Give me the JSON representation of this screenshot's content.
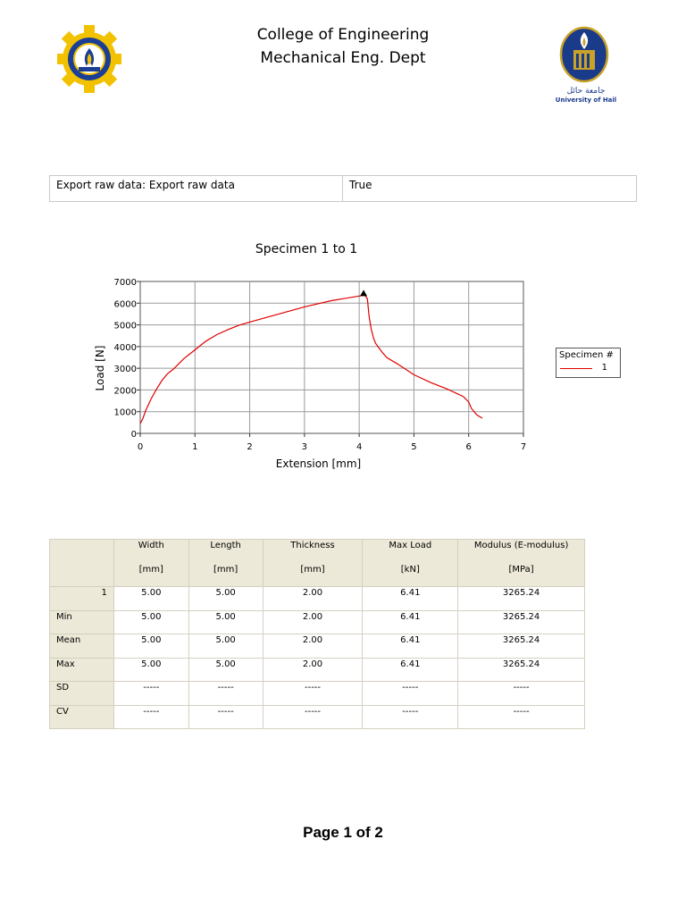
{
  "header": {
    "line1": "College of Engineering",
    "line2": "Mechanical Eng. Dept",
    "right_logo_text_ar": "جامعة حائل",
    "right_logo_text_en": "University of Hail"
  },
  "info_row": {
    "label": "Export raw data: Export raw data",
    "value": "True"
  },
  "chart_title": "Specimen 1 to 1",
  "chart_data": {
    "type": "line",
    "xlabel": "Extension [mm]",
    "ylabel": "Load [N]",
    "xlim": [
      0,
      7
    ],
    "ylim": [
      0,
      7000
    ],
    "xticks": [
      "0",
      "1",
      "2",
      "3",
      "4",
      "5",
      "6",
      "7"
    ],
    "yticks": [
      "0",
      "1000",
      "2000",
      "3000",
      "4000",
      "5000",
      "6000",
      "7000"
    ],
    "grid": true,
    "legend_title": "Specimen #",
    "legend_placement": "right",
    "series": [
      {
        "name": "1",
        "color": "#e00000",
        "x": [
          0,
          0.05,
          0.1,
          0.2,
          0.3,
          0.4,
          0.5,
          0.6,
          0.7,
          0.8,
          0.9,
          1.0,
          1.2,
          1.4,
          1.6,
          1.8,
          2.0,
          2.5,
          3.0,
          3.5,
          4.0,
          4.1,
          4.15,
          4.18,
          4.22,
          4.26,
          4.3,
          4.4,
          4.5,
          4.7,
          5.0,
          5.3,
          5.6,
          5.9,
          6.0,
          6.05,
          6.15,
          6.25
        ],
        "y": [
          450,
          700,
          1050,
          1600,
          2050,
          2450,
          2750,
          2950,
          3200,
          3450,
          3650,
          3850,
          4250,
          4550,
          4780,
          4980,
          5130,
          5480,
          5830,
          6120,
          6330,
          6380,
          6200,
          5400,
          4800,
          4400,
          4150,
          3800,
          3500,
          3200,
          2700,
          2350,
          2050,
          1700,
          1450,
          1150,
          850,
          700
        ]
      }
    ],
    "peak_marker": {
      "x": 4.08,
      "y": 6410
    }
  },
  "results": {
    "headers": [
      {
        "name": "",
        "unit": ""
      },
      {
        "name": "Width",
        "unit": "[mm]"
      },
      {
        "name": "Length",
        "unit": "[mm]"
      },
      {
        "name": "Thickness",
        "unit": "[mm]"
      },
      {
        "name": "Max Load",
        "unit": "[kN]"
      },
      {
        "name": "Modulus (E-modulus)",
        "unit": "[MPa]"
      }
    ],
    "rows": [
      {
        "label": "1",
        "values": [
          "5.00",
          "5.00",
          "2.00",
          "6.41",
          "3265.24"
        ]
      },
      {
        "label": "Min",
        "values": [
          "5.00",
          "5.00",
          "2.00",
          "6.41",
          "3265.24"
        ]
      },
      {
        "label": "Mean",
        "values": [
          "5.00",
          "5.00",
          "2.00",
          "6.41",
          "3265.24"
        ]
      },
      {
        "label": "Max",
        "values": [
          "5.00",
          "5.00",
          "2.00",
          "6.41",
          "3265.24"
        ]
      },
      {
        "label": "SD",
        "values": [
          "-----",
          "-----",
          "-----",
          "-----",
          "-----"
        ]
      },
      {
        "label": "CV",
        "values": [
          "-----",
          "-----",
          "-----",
          "-----",
          "-----"
        ]
      }
    ]
  },
  "footer": "Page 1 of 2",
  "colors": {
    "series_red": "#e00000",
    "table_header_bg": "#ece9d8",
    "left_logo_yellow": "#f2c200",
    "left_logo_blue": "#1c3f95",
    "right_logo_blue": "#1a3a8a",
    "right_logo_gold": "#c9a227"
  }
}
